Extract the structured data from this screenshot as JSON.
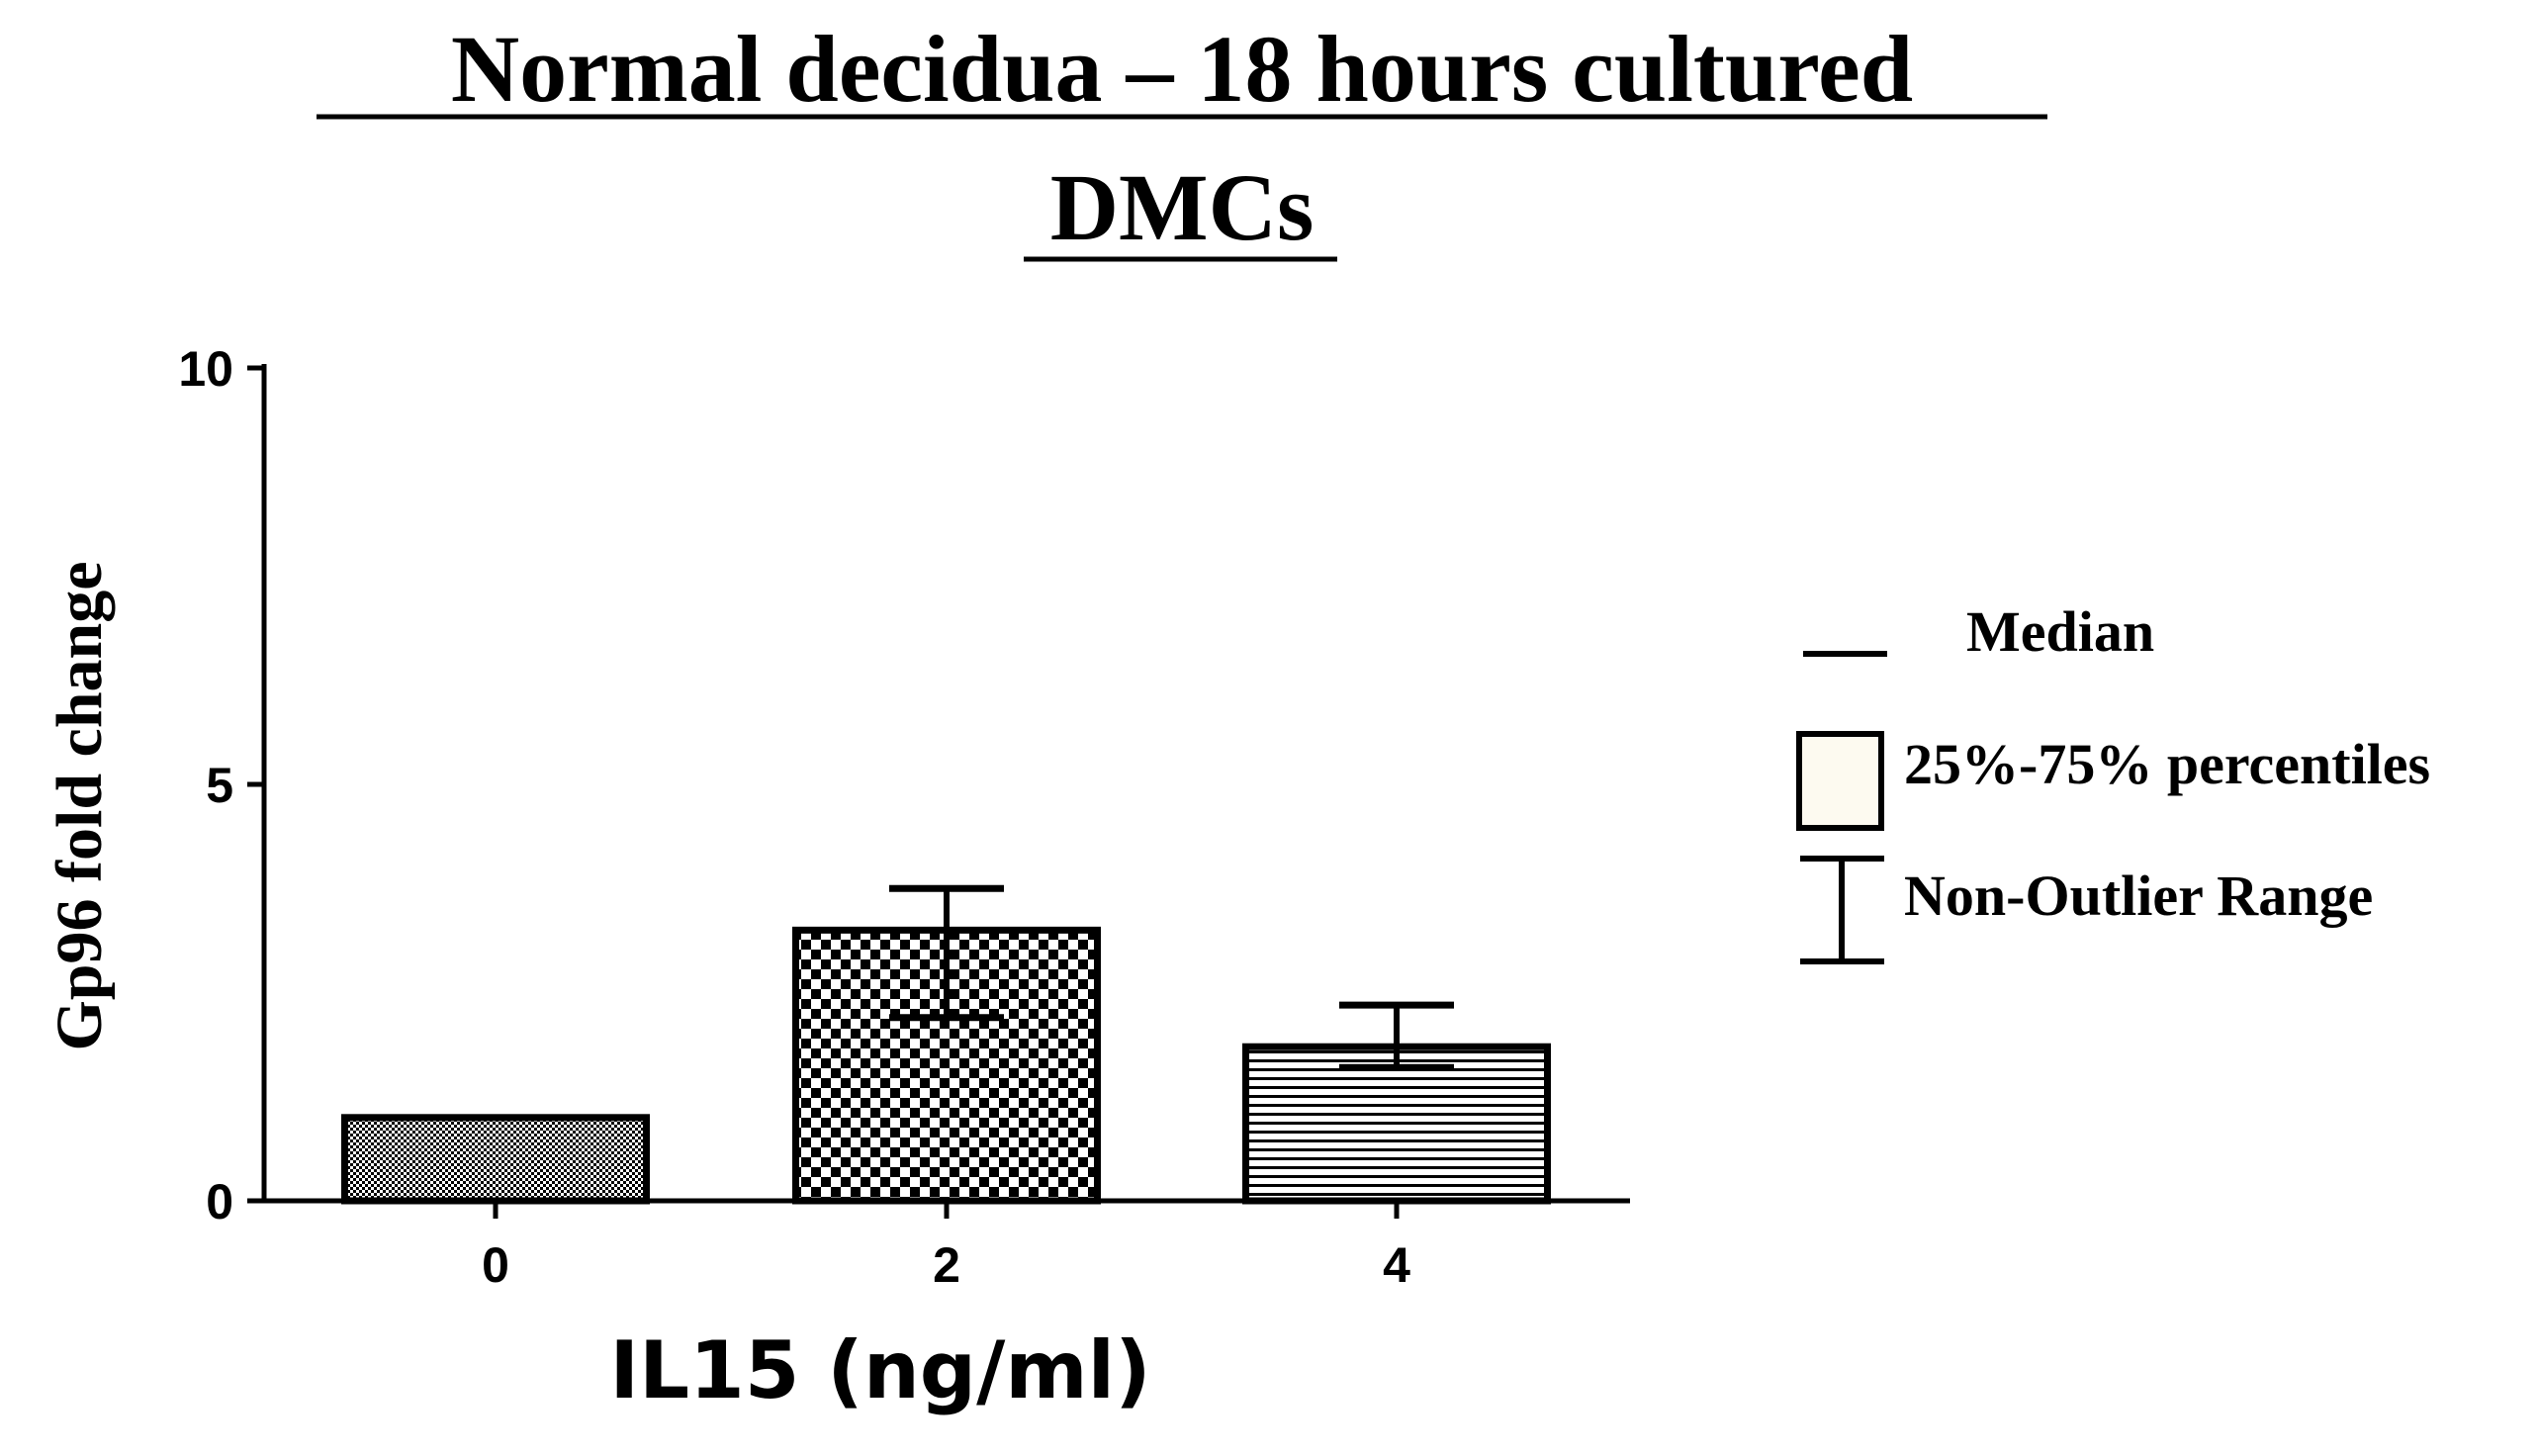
{
  "chart_data": {
    "type": "bar",
    "title": "Normal decidua – 18 hours cultured DMCs",
    "title_lines": [
      "Normal decidua – 18 hours cultured",
      "DMCs"
    ],
    "xlabel": "IL15 (ng/ml)",
    "ylabel": "Gp96 fold change",
    "categories": [
      "0",
      "2",
      "4"
    ],
    "values": [
      1.0,
      3.25,
      1.85
    ],
    "error_low": [
      1.0,
      2.2,
      1.6
    ],
    "error_high": [
      1.0,
      3.75,
      2.35
    ],
    "ylim": [
      0,
      10
    ],
    "yticks": [
      "0",
      "5",
      "10"
    ],
    "ytick_values": [
      0,
      5,
      10
    ],
    "bar_patterns": [
      "fine-dots",
      "checkerboard",
      "horizontal-lines"
    ],
    "grid": false,
    "legend_position": "right",
    "legend": [
      {
        "symbol": "median-line",
        "label": "Median"
      },
      {
        "symbol": "box",
        "label": "25%-75% percentiles"
      },
      {
        "symbol": "whisker",
        "label": "Non-Outlier Range"
      }
    ],
    "colors": {
      "ink": "#000000",
      "box_fill": "#fdfaf0",
      "background": "#ffffff"
    }
  }
}
